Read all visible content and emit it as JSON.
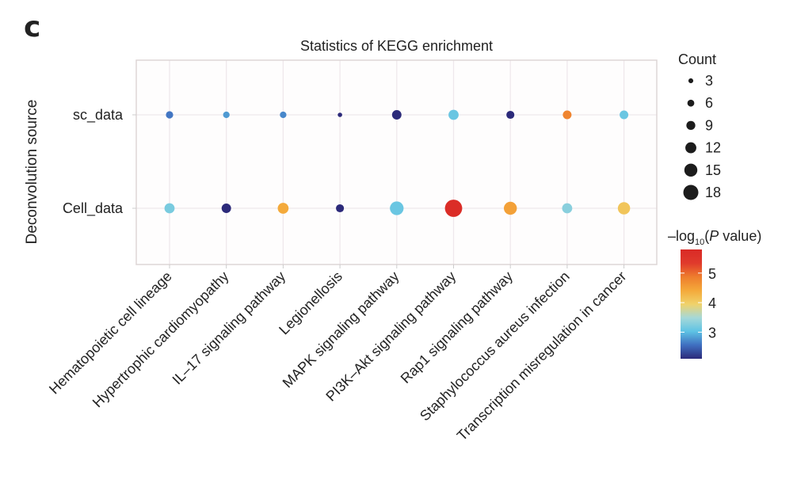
{
  "panel_label": "c",
  "chart_data": {
    "type": "scatter",
    "subtype": "dot-plot",
    "title": "Statistics of KEGG enrichment",
    "xlabel": "",
    "ylabel": "Deconvolution source",
    "categories": [
      "Hematopoietic cell lineage",
      "Hypertrophic cardiomyopathy",
      "IL–17 signaling pathway",
      "Legionellosis",
      "MAPK signaling pathway",
      "PI3K–Akt signaling pathway",
      "Rap1 signaling pathway",
      "Staphylococcus aureus infection",
      "Transcription misregulation in cancer"
    ],
    "y_categories": [
      "sc_data",
      "Cell_data"
    ],
    "grid": true,
    "series": [
      {
        "name": "sc_data",
        "count": [
          6,
          5,
          5,
          2,
          9,
          10,
          7,
          8,
          8
        ],
        "neg_log10_p": [
          2.6,
          2.8,
          2.7,
          2.1,
          2.1,
          3.1,
          2.1,
          4.8,
          3.1
        ]
      },
      {
        "name": "Cell_data",
        "count": [
          10,
          9,
          11,
          7,
          15,
          20,
          14,
          10,
          13
        ],
        "neg_log10_p": [
          3.2,
          2.1,
          4.4,
          2.1,
          3.1,
          5.7,
          4.5,
          3.3,
          4.1
        ]
      }
    ],
    "size_legend": {
      "title": "Count",
      "values": [
        3,
        6,
        9,
        12,
        15,
        18
      ],
      "labels": [
        "3",
        "6",
        "9",
        "12",
        "15",
        "18"
      ],
      "placement": "right-top"
    },
    "color_legend": {
      "title_prefix": "–log",
      "title_sub": "10",
      "title_paren_open": "(",
      "title_italic": "P",
      "title_suffix": " value)",
      "range": [
        2.1,
        5.8
      ],
      "ticks": [
        3,
        4,
        5
      ],
      "tick_labels": [
        "3",
        "4",
        "5"
      ],
      "colormap": [
        "#2c2a7a",
        "#3f6fc0",
        "#5ec3e4",
        "#a6d8d8",
        "#f0d26a",
        "#f4a93a",
        "#ee7d2d",
        "#e03a2c",
        "#d92a26"
      ],
      "placement": "right-bottom"
    }
  }
}
